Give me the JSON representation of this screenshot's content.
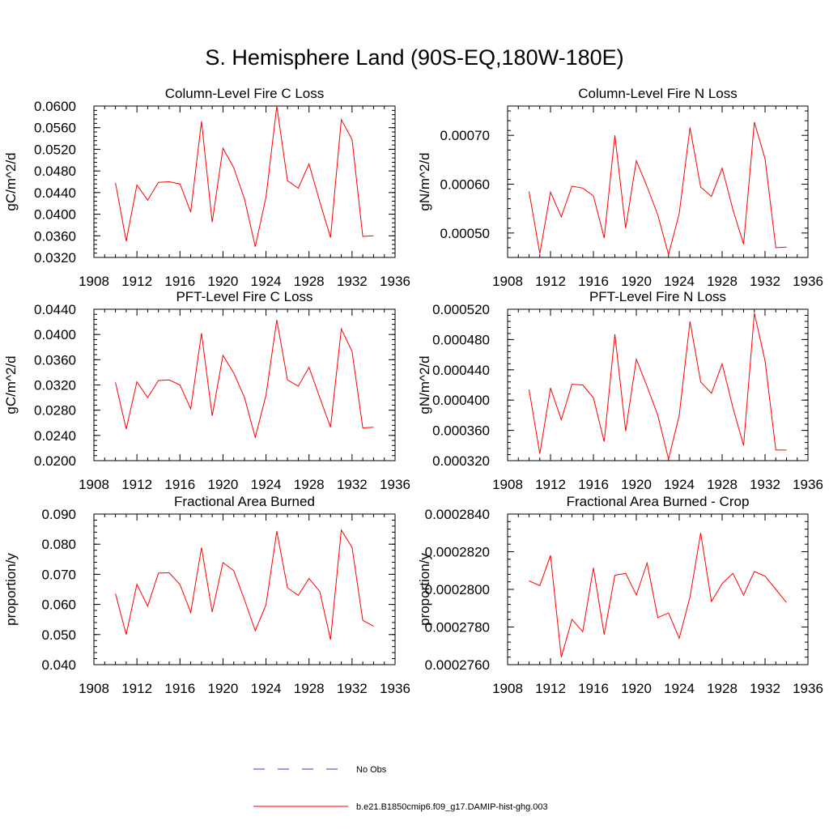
{
  "title": "S. Hemisphere Land (90S-EQ,180W-180E)",
  "legend": {
    "items": [
      {
        "label": "No Obs",
        "style": "dashed",
        "color": "#3a3ab4"
      },
      {
        "label": "b.e21.B1850cmip6.f09_g17.DAMIP-hist-ghg.003",
        "style": "solid",
        "color": "#ff0000"
      }
    ],
    "placement": "bottom-center"
  },
  "colors": {
    "series": "#ff0000",
    "axis": "#000000"
  },
  "chart_data": [
    {
      "type": "line",
      "title": "Column-Level Fire C Loss",
      "xlabel": "",
      "ylabel": "gC/m^2/d",
      "xlim": [
        1908,
        1936
      ],
      "ylim": [
        0.032,
        0.06
      ],
      "xticks": [
        "1908",
        "1912",
        "1916",
        "1920",
        "1924",
        "1928",
        "1932",
        "1936"
      ],
      "yticks": [
        "0.0320",
        "0.0360",
        "0.0400",
        "0.0440",
        "0.0480",
        "0.0520",
        "0.0560",
        "0.0600"
      ],
      "x": [
        1910,
        1911,
        1912,
        1913,
        1914,
        1915,
        1916,
        1917,
        1918,
        1919,
        1920,
        1921,
        1922,
        1923,
        1924,
        1925,
        1926,
        1927,
        1928,
        1929,
        1930,
        1931,
        1932,
        1933,
        1934
      ],
      "series": [
        {
          "name": "b.e21.B1850cmip6.f09_g17.DAMIP-hist-ghg.003",
          "values": [
            0.0458,
            0.035,
            0.0454,
            0.0426,
            0.0459,
            0.046,
            0.0456,
            0.0404,
            0.0572,
            0.0385,
            0.0522,
            0.0486,
            0.0428,
            0.034,
            0.0432,
            0.06,
            0.0462,
            0.0448,
            0.0493,
            0.0423,
            0.0357,
            0.0575,
            0.0538,
            0.0359,
            0.036
          ]
        }
      ]
    },
    {
      "type": "line",
      "title": "Column-Level Fire N Loss",
      "xlabel": "",
      "ylabel": "gN/m^2/d",
      "xlim": [
        1908,
        1936
      ],
      "ylim": [
        0.00045,
        0.00076
      ],
      "xticks": [
        "1908",
        "1912",
        "1916",
        "1920",
        "1924",
        "1928",
        "1932",
        "1936"
      ],
      "yticks": [
        "0.00050",
        "0.00060",
        "0.00070"
      ],
      "yticks_values": [
        0.0005,
        0.0006,
        0.0007
      ],
      "x": [
        1910,
        1911,
        1912,
        1913,
        1914,
        1915,
        1916,
        1917,
        1918,
        1919,
        1920,
        1921,
        1922,
        1923,
        1924,
        1925,
        1926,
        1927,
        1928,
        1929,
        1930,
        1931,
        1932,
        1933,
        1934
      ],
      "series": [
        {
          "name": "b.e21.B1850cmip6.f09_g17.DAMIP-hist-ghg.003",
          "values": [
            0.000585,
            0.000458,
            0.000584,
            0.000533,
            0.000596,
            0.000592,
            0.000576,
            0.00049,
            0.0007,
            0.00051,
            0.000648,
            0.000595,
            0.000537,
            0.000456,
            0.00054,
            0.000716,
            0.000594,
            0.000575,
            0.000633,
            0.000548,
            0.000477,
            0.000727,
            0.000652,
            0.00047,
            0.000471
          ]
        }
      ]
    },
    {
      "type": "line",
      "title": "PFT-Level Fire C Loss",
      "xlabel": "",
      "ylabel": "gC/m^2/d",
      "xlim": [
        1908,
        1936
      ],
      "ylim": [
        0.02,
        0.044
      ],
      "xticks": [
        "1908",
        "1912",
        "1916",
        "1920",
        "1924",
        "1928",
        "1932",
        "1936"
      ],
      "yticks": [
        "0.0200",
        "0.0240",
        "0.0280",
        "0.0320",
        "0.0360",
        "0.0400",
        "0.0440"
      ],
      "x": [
        1910,
        1911,
        1912,
        1913,
        1914,
        1915,
        1916,
        1917,
        1918,
        1919,
        1920,
        1921,
        1922,
        1923,
        1924,
        1925,
        1926,
        1927,
        1928,
        1929,
        1930,
        1931,
        1932,
        1933,
        1934
      ],
      "series": [
        {
          "name": "b.e21.B1850cmip6.f09_g17.DAMIP-hist-ghg.003",
          "values": [
            0.0324,
            0.025,
            0.0325,
            0.03,
            0.0327,
            0.0328,
            0.032,
            0.0282,
            0.0402,
            0.0271,
            0.0367,
            0.0339,
            0.03,
            0.0237,
            0.0304,
            0.0423,
            0.0328,
            0.0318,
            0.0348,
            0.03,
            0.0253,
            0.0409,
            0.0373,
            0.0252,
            0.0253
          ]
        }
      ]
    },
    {
      "type": "line",
      "title": "PFT-Level Fire N Loss",
      "xlabel": "",
      "ylabel": "gN/m^2/d",
      "xlim": [
        1908,
        1936
      ],
      "ylim": [
        0.00032,
        0.00052
      ],
      "xticks": [
        "1908",
        "1912",
        "1916",
        "1920",
        "1924",
        "1928",
        "1932",
        "1936"
      ],
      "yticks": [
        "0.000320",
        "0.000360",
        "0.000400",
        "0.000440",
        "0.000480",
        "0.000520"
      ],
      "x": [
        1910,
        1911,
        1912,
        1913,
        1914,
        1915,
        1916,
        1917,
        1918,
        1919,
        1920,
        1921,
        1922,
        1923,
        1924,
        1925,
        1926,
        1927,
        1928,
        1929,
        1930,
        1931,
        1932,
        1933,
        1934
      ],
      "series": [
        {
          "name": "b.e21.B1850cmip6.f09_g17.DAMIP-hist-ghg.003",
          "values": [
            0.000414,
            0.000329,
            0.000416,
            0.000374,
            0.000421,
            0.00042,
            0.000403,
            0.000345,
            0.000487,
            0.000359,
            0.000454,
            0.000418,
            0.00038,
            0.000322,
            0.00038,
            0.000504,
            0.000424,
            0.000409,
            0.000448,
            0.00039,
            0.00034,
            0.000515,
            0.000452,
            0.000334,
            0.000334
          ]
        }
      ]
    },
    {
      "type": "line",
      "title": "Fractional Area Burned",
      "xlabel": "",
      "ylabel": "proportion/y",
      "xlim": [
        1908,
        1936
      ],
      "ylim": [
        0.04,
        0.09
      ],
      "xticks": [
        "1908",
        "1912",
        "1916",
        "1920",
        "1924",
        "1928",
        "1932",
        "1936"
      ],
      "yticks": [
        "0.040",
        "0.050",
        "0.060",
        "0.070",
        "0.080",
        "0.090"
      ],
      "x": [
        1910,
        1911,
        1912,
        1913,
        1914,
        1915,
        1916,
        1917,
        1918,
        1919,
        1920,
        1921,
        1922,
        1923,
        1924,
        1925,
        1926,
        1927,
        1928,
        1929,
        1930,
        1931,
        1932,
        1933,
        1934
      ],
      "series": [
        {
          "name": "b.e21.B1850cmip6.f09_g17.DAMIP-hist-ghg.003",
          "values": [
            0.0636,
            0.05,
            0.0667,
            0.0594,
            0.0704,
            0.0705,
            0.0666,
            0.0573,
            0.0789,
            0.0575,
            0.0739,
            0.0712,
            0.0615,
            0.0513,
            0.0599,
            0.0843,
            0.0655,
            0.063,
            0.0686,
            0.0643,
            0.0483,
            0.0847,
            0.0789,
            0.0547,
            0.0528
          ]
        }
      ]
    },
    {
      "type": "line",
      "title": "Fractional Area Burned - Crop",
      "xlabel": "",
      "ylabel": "proportion/y",
      "xlim": [
        1908,
        1936
      ],
      "ylim": [
        0.000276,
        0.000284
      ],
      "xticks": [
        "1908",
        "1912",
        "1916",
        "1920",
        "1924",
        "1928",
        "1932",
        "1936"
      ],
      "yticks": [
        "0.0002760",
        "0.0002780",
        "0.0002800",
        "0.0002820",
        "0.0002840"
      ],
      "x": [
        1910,
        1911,
        1912,
        1913,
        1914,
        1915,
        1916,
        1917,
        1918,
        1919,
        1920,
        1921,
        1922,
        1923,
        1924,
        1925,
        1926,
        1927,
        1928,
        1929,
        1930,
        1931,
        1932,
        1933,
        1934
      ],
      "series": [
        {
          "name": "b.e21.B1850cmip6.f09_g17.DAMIP-hist-ghg.003",
          "values": [
            0.00028045,
            0.0002802,
            0.0002818,
            0.0002764,
            0.0002784,
            0.00027775,
            0.00028115,
            0.0002776,
            0.00028075,
            0.00028085,
            0.0002797,
            0.0002814,
            0.0002785,
            0.00027875,
            0.0002774,
            0.0002796,
            0.000283,
            0.00027935,
            0.0002803,
            0.00028085,
            0.0002797,
            0.00028095,
            0.0002807,
            0.00028,
            0.0002793
          ]
        }
      ]
    }
  ]
}
